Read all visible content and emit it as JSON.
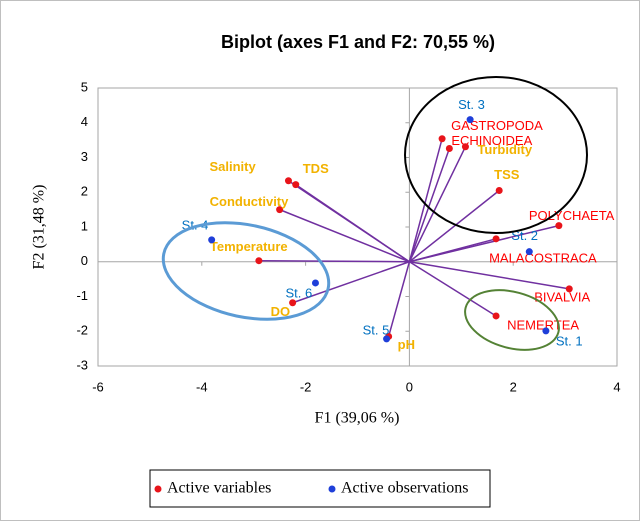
{
  "chart_data": {
    "type": "scatter",
    "title": "Biplot (axes F1 and F2: 70,55 %)",
    "x_label": "F1 (39,06 %)",
    "y_label": "F2 (31,48 %)",
    "xlim": [
      -6,
      4
    ],
    "ylim": [
      -3,
      5
    ],
    "xticks": [
      -6,
      -4,
      -2,
      0,
      2,
      4
    ],
    "yticks": [
      -3,
      -2,
      -1,
      0,
      1,
      2,
      3,
      4,
      5
    ],
    "vector_color": "#7030a0",
    "series": [
      {
        "name": "Active variables",
        "color": "#e8141a",
        "vectors": true,
        "labels": [
          "GASTROPODA",
          "ECHINOIDEA",
          "Turbidity",
          "TSS",
          "POLYCHAETA",
          "MALACOSTRACA",
          "BIVALVIA",
          "NEMERTEA",
          "Salinity",
          "TDS",
          "Conductivity",
          "Temperature",
          "DO",
          "pH"
        ],
        "label_colors": [
          "#ff0000",
          "#ff0000",
          "#f2b200",
          "#f2b200",
          "#ff0000",
          "#ff0000",
          "#ff0000",
          "#ff0000",
          "#f2b200",
          "#f2b200",
          "#f2b200",
          "#f2b200",
          "#f2b200",
          "#f2b200"
        ],
        "x": [
          0.63,
          0.77,
          1.08,
          1.73,
          2.88,
          1.67,
          3.08,
          1.67,
          -2.33,
          -2.19,
          -2.5,
          -2.9,
          -2.25,
          -0.4
        ],
        "values": [
          3.54,
          3.26,
          3.31,
          2.05,
          1.04,
          0.66,
          -0.78,
          -1.56,
          2.33,
          2.22,
          1.5,
          0.03,
          -1.18,
          -2.15
        ]
      },
      {
        "name": "Active observations",
        "color": "#1f3fd9",
        "vectors": false,
        "labels": [
          "St. 3",
          "St. 2",
          "St. 1",
          "St. 4",
          "St. 6",
          "St. 5"
        ],
        "label_colors": [
          "#0070c0",
          "#0070c0",
          "#0070c0",
          "#0070c0",
          "#0070c0",
          "#0070c0"
        ],
        "x": [
          1.17,
          2.31,
          2.63,
          -3.81,
          -1.81,
          -0.44
        ],
        "values": [
          4.09,
          0.29,
          -1.99,
          0.63,
          -0.61,
          -2.22
        ]
      }
    ]
  }
}
